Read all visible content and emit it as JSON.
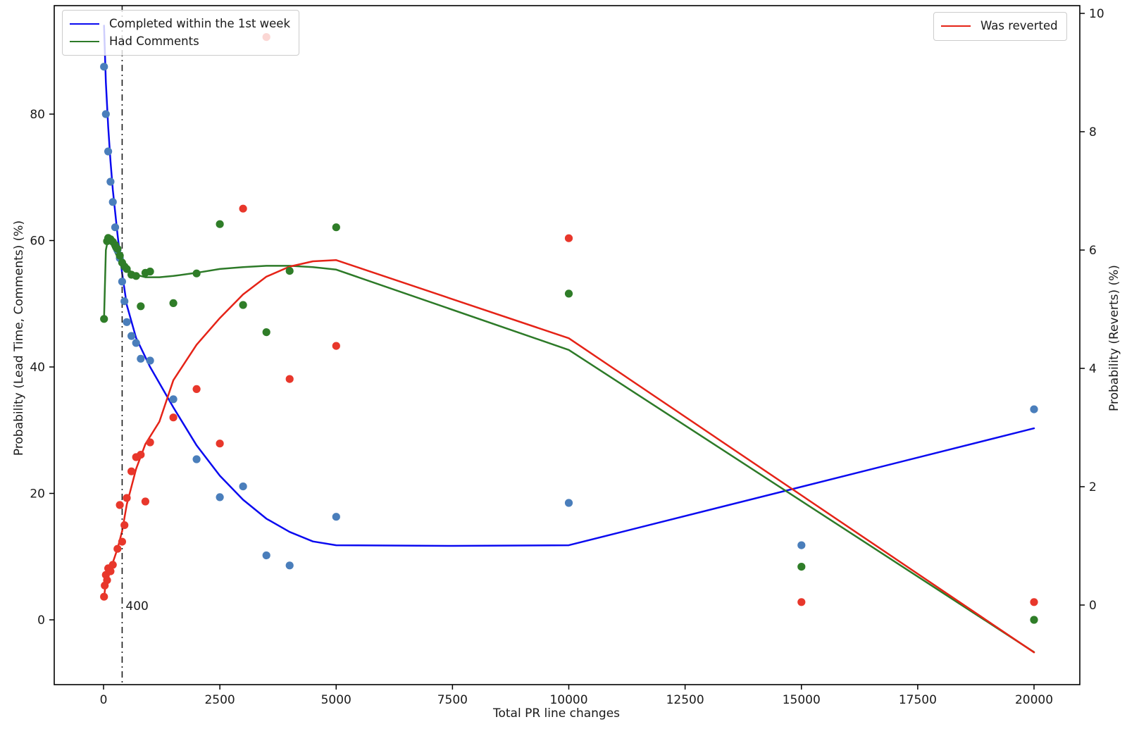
{
  "chart_data": {
    "type": "scatter",
    "title": "",
    "xlabel": "Total PR line changes",
    "ylabel_left": "Probability (Lead Time, Comments) (%)",
    "ylabel_right": "Probability (Reverts) (%)",
    "grid": false,
    "xlim": [
      -1060,
      21000
    ],
    "yleft_lim": [
      -10.3,
      97.2
    ],
    "yright_lim": [
      -1.35,
      10.13
    ],
    "x_ticks": {
      "values": [
        0,
        2500,
        5000,
        7500,
        10000,
        12500,
        15000,
        17500,
        20000
      ],
      "labels": [
        "0",
        "2500",
        "5000",
        "7500",
        "10000",
        "12500",
        "15000",
        "17500",
        "20000"
      ]
    },
    "yleft_ticks": {
      "values": [
        0,
        20,
        40,
        60,
        80
      ],
      "labels": [
        "0",
        "20",
        "40",
        "60",
        "80"
      ]
    },
    "yright_ticks": {
      "values": [
        0,
        2,
        4,
        6,
        8,
        10
      ],
      "labels": [
        "0",
        "2",
        "4",
        "6",
        "8",
        "10"
      ]
    },
    "reference_line": {
      "x": 400,
      "style": "dashdot",
      "color": "#1a1a1a"
    },
    "annotation": {
      "text": "400",
      "x": 400
    },
    "legend_left": {
      "position": "upper left",
      "entries": [
        {
          "label": "Completed within the 1st week",
          "color": "#0b0bf0"
        },
        {
          "label": "Had Comments",
          "color": "#2d7a28"
        }
      ]
    },
    "legend_right": {
      "position": "upper right",
      "entries": [
        {
          "label": "Was reverted",
          "color": "#e52317"
        }
      ]
    },
    "series": [
      {
        "name": "completed-within-1st-week-trend",
        "type": "line",
        "axis": "left",
        "color": "#0b0bf0",
        "points": [
          [
            10,
            94
          ],
          [
            50,
            85
          ],
          [
            100,
            78
          ],
          [
            150,
            72.5
          ],
          [
            200,
            68
          ],
          [
            300,
            61
          ],
          [
            400,
            54.8
          ],
          [
            500,
            49.8
          ],
          [
            700,
            44.6
          ],
          [
            1000,
            40
          ],
          [
            1500,
            33.6
          ],
          [
            2000,
            27.6
          ],
          [
            2500,
            22.8
          ],
          [
            3000,
            19
          ],
          [
            3500,
            16
          ],
          [
            4000,
            13.9
          ],
          [
            4500,
            12.4
          ],
          [
            5000,
            11.8
          ],
          [
            7500,
            11.7
          ],
          [
            10000,
            11.8
          ],
          [
            20000,
            30.3
          ]
        ]
      },
      {
        "name": "had-comments-trend",
        "type": "line",
        "axis": "left",
        "color": "#2d7a28",
        "points": [
          [
            10,
            47.6
          ],
          [
            50,
            58.5
          ],
          [
            80,
            59.6
          ],
          [
            120,
            59.9
          ],
          [
            160,
            59.6
          ],
          [
            200,
            58.9
          ],
          [
            300,
            57.4
          ],
          [
            400,
            56.3
          ],
          [
            500,
            55.5
          ],
          [
            700,
            54.6
          ],
          [
            900,
            54.2
          ],
          [
            1200,
            54.2
          ],
          [
            1500,
            54.4
          ],
          [
            2000,
            54.9
          ],
          [
            2500,
            55.5
          ],
          [
            3000,
            55.8
          ],
          [
            3500,
            56.0
          ],
          [
            4000,
            56.0
          ],
          [
            4500,
            55.8
          ],
          [
            5000,
            55.4
          ],
          [
            10000,
            42.7
          ],
          [
            20000,
            -5.1
          ]
        ]
      },
      {
        "name": "was-reverted-trend",
        "type": "line",
        "axis": "right",
        "color": "#e52317",
        "points": [
          [
            10,
            0.12
          ],
          [
            50,
            0.4
          ],
          [
            100,
            0.55
          ],
          [
            200,
            0.72
          ],
          [
            300,
            0.95
          ],
          [
            400,
            1.25
          ],
          [
            500,
            1.7
          ],
          [
            700,
            2.3
          ],
          [
            900,
            2.72
          ],
          [
            1200,
            3.1
          ],
          [
            1500,
            3.8
          ],
          [
            2000,
            4.4
          ],
          [
            2500,
            4.85
          ],
          [
            3000,
            5.25
          ],
          [
            3500,
            5.55
          ],
          [
            4000,
            5.72
          ],
          [
            4500,
            5.81
          ],
          [
            5000,
            5.83
          ],
          [
            10000,
            4.51
          ],
          [
            20000,
            -0.8
          ]
        ]
      },
      {
        "name": "completed-within-1st-week-scatter",
        "type": "scatter",
        "axis": "left",
        "color": "#4a7ebb",
        "points": [
          [
            10,
            87.5
          ],
          [
            50,
            80.0
          ],
          [
            100,
            74.1
          ],
          [
            150,
            69.3
          ],
          [
            200,
            66.1
          ],
          [
            250,
            62.1
          ],
          [
            300,
            58.5
          ],
          [
            350,
            57.2
          ],
          [
            400,
            53.5
          ],
          [
            450,
            50.4
          ],
          [
            500,
            47.1
          ],
          [
            600,
            44.9
          ],
          [
            700,
            43.8
          ],
          [
            800,
            41.3
          ],
          [
            1000,
            41.0
          ],
          [
            1500,
            34.9
          ],
          [
            2000,
            25.4
          ],
          [
            2500,
            19.4
          ],
          [
            3000,
            21.1
          ],
          [
            3500,
            10.2
          ],
          [
            4000,
            8.6
          ],
          [
            5000,
            16.3
          ],
          [
            10000,
            18.5
          ],
          [
            15000,
            11.8
          ],
          [
            20000,
            33.3
          ]
        ]
      },
      {
        "name": "had-comments-scatter",
        "type": "scatter",
        "axis": "left",
        "color": "#2f7d28",
        "points": [
          [
            10,
            47.6
          ],
          [
            75,
            59.9
          ],
          [
            100,
            60.4
          ],
          [
            150,
            60.2
          ],
          [
            200,
            59.8
          ],
          [
            250,
            59.3
          ],
          [
            300,
            58.7
          ],
          [
            350,
            57.6
          ],
          [
            400,
            56.5
          ],
          [
            450,
            55.9
          ],
          [
            500,
            55.5
          ],
          [
            600,
            54.6
          ],
          [
            700,
            54.4
          ],
          [
            800,
            49.6
          ],
          [
            900,
            54.9
          ],
          [
            1000,
            55.1
          ],
          [
            1500,
            50.1
          ],
          [
            2000,
            54.8
          ],
          [
            2500,
            62.6
          ],
          [
            3000,
            49.8
          ],
          [
            3500,
            45.5
          ],
          [
            4000,
            55.2
          ],
          [
            5000,
            62.1
          ],
          [
            10000,
            51.6
          ],
          [
            15000,
            8.4
          ],
          [
            20000,
            0.0
          ]
        ]
      },
      {
        "name": "was-reverted-scatter",
        "type": "scatter",
        "axis": "right",
        "color": "#e8372b",
        "points": [
          [
            10,
            0.14
          ],
          [
            25,
            0.33
          ],
          [
            50,
            0.51
          ],
          [
            75,
            0.42
          ],
          [
            100,
            0.62
          ],
          [
            150,
            0.57
          ],
          [
            200,
            0.68
          ],
          [
            300,
            0.95
          ],
          [
            350,
            1.69
          ],
          [
            400,
            1.07
          ],
          [
            450,
            1.35
          ],
          [
            500,
            1.81
          ],
          [
            600,
            2.26
          ],
          [
            700,
            2.5
          ],
          [
            800,
            2.54
          ],
          [
            900,
            1.75
          ],
          [
            1000,
            2.75
          ],
          [
            1500,
            3.17
          ],
          [
            2000,
            3.65
          ],
          [
            2500,
            2.73
          ],
          [
            3000,
            6.7
          ],
          [
            3500,
            9.6
          ],
          [
            4000,
            3.82
          ],
          [
            5000,
            4.38
          ],
          [
            10000,
            6.2
          ],
          [
            15000,
            0.05
          ],
          [
            20000,
            0.05
          ]
        ]
      }
    ]
  }
}
